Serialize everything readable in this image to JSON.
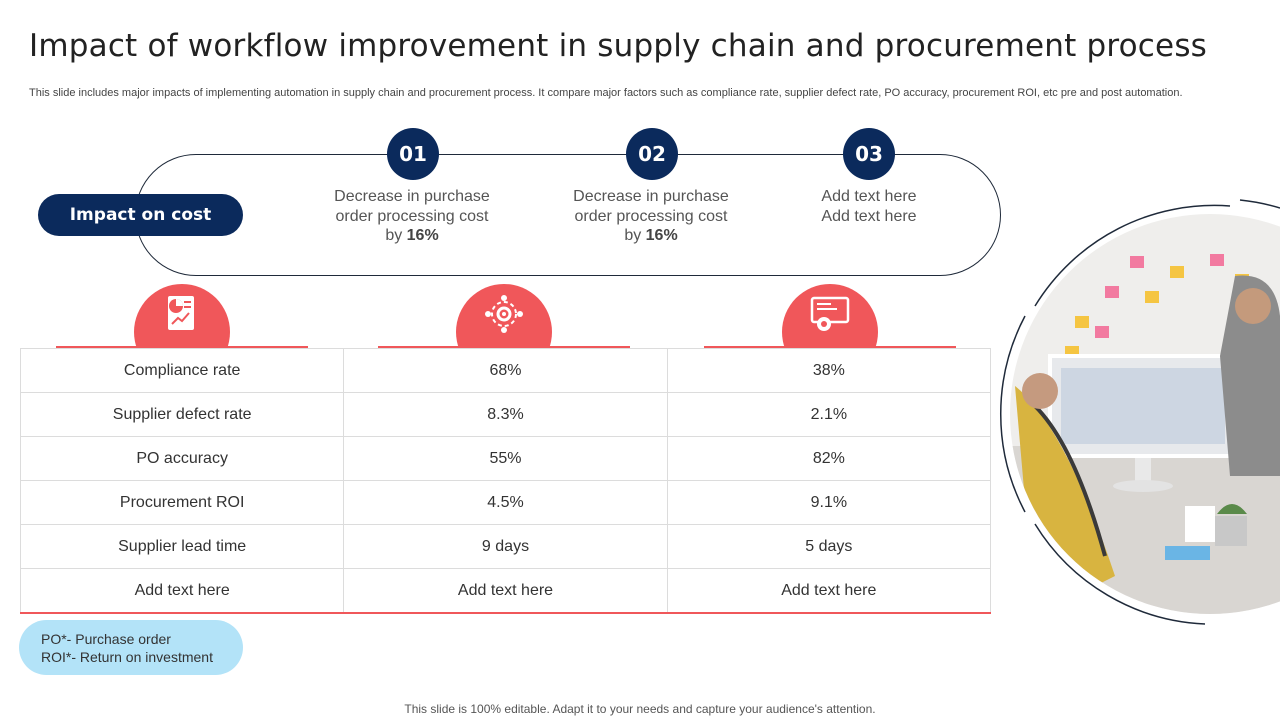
{
  "header": {
    "title": "Impact of workflow improvement in supply chain and procurement process",
    "subtitle": "This slide includes major impacts of implementing automation in supply chain and procurement process. It compare major factors such as compliance rate, supplier defect rate, PO accuracy, procurement ROI, etc pre and post automation."
  },
  "impact": {
    "label": "Impact on cost",
    "steps": [
      {
        "number": "01",
        "line1": "Decrease in purchase",
        "line2": "order processing cost",
        "line3_prefix": "by ",
        "highlight": "16%"
      },
      {
        "number": "02",
        "line1": "Decrease in purchase",
        "line2": "order processing cost",
        "line3_prefix": "by ",
        "highlight": "16%"
      },
      {
        "number": "03",
        "line1": "Add text here",
        "line2": "Add text here"
      }
    ]
  },
  "icons": [
    "pie-chart-document-icon",
    "gear-network-icon",
    "monitor-settings-icon"
  ],
  "table": {
    "rows": [
      [
        "Compliance rate",
        "68%",
        "38%"
      ],
      [
        "Supplier defect rate",
        "8.3%",
        "2.1%"
      ],
      [
        "PO accuracy",
        "55%",
        "82%"
      ],
      [
        "Procurement ROI",
        "4.5%",
        "9.1%"
      ],
      [
        "Supplier lead time",
        "9 days",
        "5 days"
      ],
      [
        "Add text here",
        "Add text here",
        "Add text here"
      ]
    ]
  },
  "legend": {
    "line1": "PO*- Purchase order",
    "line2": "ROI*- Return on investment"
  },
  "footer": "This slide is 100% editable. Adapt it to your needs and capture your audience's attention.",
  "colors": {
    "navy": "#0b2a5c",
    "coral": "#f0575a",
    "light_blue": "#b3e3f8"
  }
}
